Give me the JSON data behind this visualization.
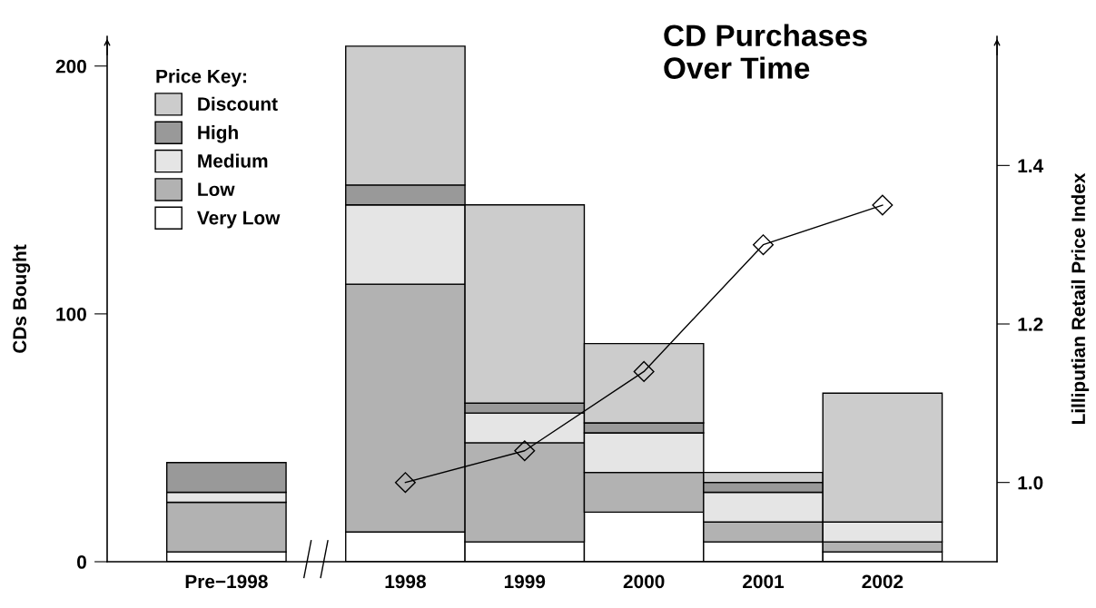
{
  "chart_data": {
    "type": "bar",
    "title": "CD Purchases\nOver Time",
    "ylabel": "CDs Bought",
    "y2label": "Lilliputian Retail Price Index",
    "legend_title": "Price Key:",
    "categories": [
      "Pre−1998",
      "1998",
      "1999",
      "2000",
      "2001",
      "2002"
    ],
    "stacked": true,
    "series": [
      {
        "name": "Very Low",
        "color": "#ffffff",
        "values": [
          4,
          12,
          8,
          20,
          8,
          4
        ]
      },
      {
        "name": "Low",
        "color": "#b2b2b2",
        "values": [
          20,
          100,
          40,
          16,
          8,
          4
        ]
      },
      {
        "name": "Medium",
        "color": "#e5e5e5",
        "values": [
          4,
          32,
          12,
          16,
          12,
          8
        ]
      },
      {
        "name": "High",
        "color": "#999999",
        "values": [
          12,
          8,
          4,
          4,
          4,
          0
        ]
      },
      {
        "name": "Discount",
        "color": "#cccccc",
        "values": [
          0,
          56,
          80,
          32,
          4,
          52
        ]
      },
      {
        "type": "line",
        "axis": "y2",
        "color": "#000000",
        "marker": "diamond",
        "values": [
          null,
          1.0,
          1.04,
          1.14,
          1.3,
          1.35
        ]
      }
    ],
    "ylim": [
      0,
      212
    ],
    "yticks": [
      0,
      100,
      200
    ],
    "y2lim": [
      0.9,
      1.563
    ],
    "y2ticks": [
      {
        "value": 1.0,
        "label": "1.0"
      },
      {
        "value": 1.2,
        "label": "1.2"
      },
      {
        "value": 1.4,
        "label": "1.4"
      }
    ],
    "legend": "top left",
    "grid": false
  }
}
